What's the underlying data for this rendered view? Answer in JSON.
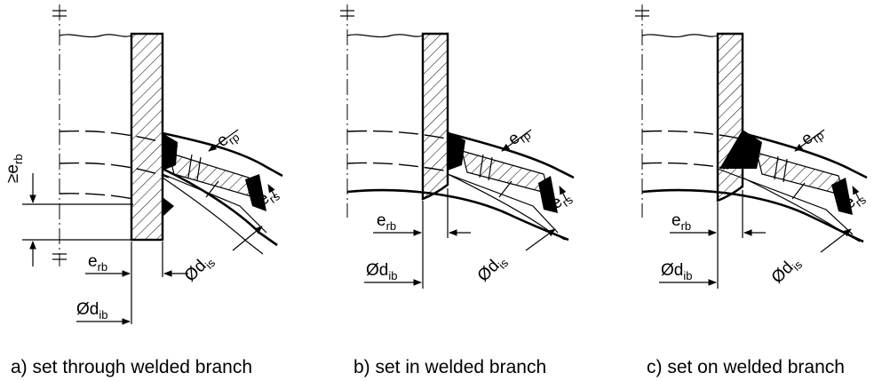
{
  "diagram": {
    "panels": [
      {
        "id": "a",
        "caption": "a) set through welded branch",
        "labels": {
          "erb_min": "≥e",
          "erb_min_sub": "rb",
          "erp": "e",
          "erp_sub": "rp",
          "ers": "e",
          "ers_sub": "rs",
          "erb": "e",
          "erb_sub": "rb",
          "dis": "Ød",
          "dis_sub": "is",
          "dib": "Ød",
          "dib_sub": "ib"
        }
      },
      {
        "id": "b",
        "caption": "b) set in welded branch",
        "labels": {
          "erp": "e",
          "erp_sub": "rp",
          "ers": "e",
          "ers_sub": "rs",
          "erb": "e",
          "erb_sub": "rb",
          "dis": "Ød",
          "dis_sub": "is",
          "dib": "Ød",
          "dib_sub": "ib"
        }
      },
      {
        "id": "c",
        "caption": "c) set on welded branch",
        "labels": {
          "erp": "e",
          "erp_sub": "rp",
          "ers": "e",
          "ers_sub": "rs",
          "erb": "e",
          "erb_sub": "rb",
          "dis": "Ød",
          "dis_sub": "is",
          "dib": "Ød",
          "dib_sub": "ib"
        }
      }
    ]
  }
}
